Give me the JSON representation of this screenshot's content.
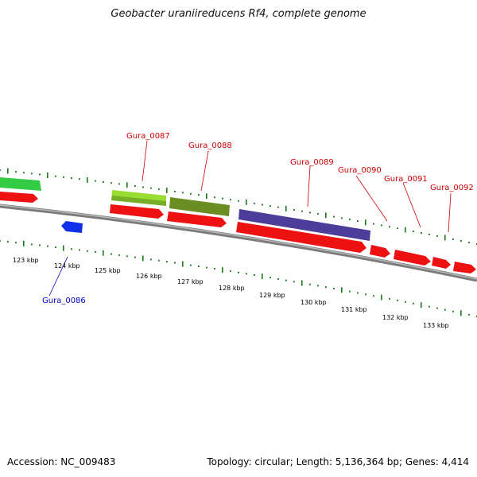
{
  "title": "Geobacter uraniireducens Rf4, complete genome",
  "footer": {
    "accession": "Accession: NC_009483",
    "summary": "Topology: circular; Length: 5,136,364 bp; Genes: 4,414"
  },
  "colors": {
    "backbone": "#888888",
    "tick": "#1a7a1a",
    "forward_label": "#cc0000",
    "reverse_label": "#0000cc"
  },
  "kbp_labels": [
    "123 kbp",
    "124 kbp",
    "125 kbp",
    "126 kbp",
    "127 kbp",
    "128 kbp",
    "129 kbp",
    "130 kbp",
    "131 kbp",
    "132 kbp",
    "133 kbp"
  ],
  "gene_labels": [
    {
      "name": "Gura_0086",
      "strand": "reverse"
    },
    {
      "name": "Gura_0087",
      "strand": "forward"
    },
    {
      "name": "Gura_0088",
      "strand": "forward"
    },
    {
      "name": "Gura_0089",
      "strand": "forward"
    },
    {
      "name": "Gura_0090",
      "strand": "forward"
    },
    {
      "name": "Gura_0091",
      "strand": "forward"
    },
    {
      "name": "Gura_0092",
      "strand": "forward"
    }
  ],
  "feature_colors": {
    "cds": "#ee1111",
    "reverse_cds": "#1030e8",
    "band_green": "#33cc44",
    "band_yellowgreen": "#99dd33",
    "band_olive": "#6b8e23",
    "band_purple": "#4b3d99"
  }
}
